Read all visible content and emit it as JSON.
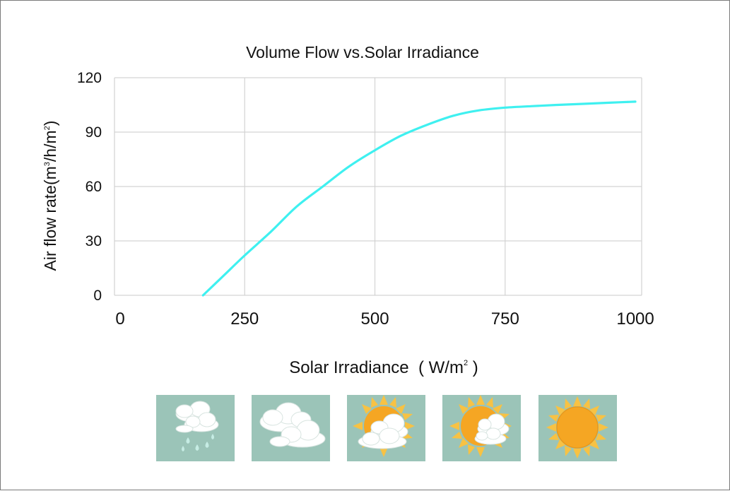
{
  "chart_data": {
    "type": "line",
    "title": "Volume Flow vs.Solar Irradiance",
    "ylabel": {
      "text": "Air flow rate(m",
      "sup1": "3",
      "mid": "/h/m",
      "sup2": "2",
      "end": ")"
    },
    "xlabel": {
      "text": "Solar Irradiance  ( W/m",
      "sup": "2",
      "end": " )"
    },
    "xlim": [
      0,
      1000
    ],
    "ylim": [
      0,
      120
    ],
    "x_ticks": [
      "0",
      "250",
      "500",
      "750",
      "1000"
    ],
    "y_ticks": [
      "0",
      "30",
      "60",
      "90",
      "120"
    ],
    "grid": true,
    "line_color": "#3ff0f0",
    "series": [
      {
        "x": [
          170,
          210,
          250,
          300,
          350,
          400,
          450,
          500,
          550,
          600,
          650,
          700,
          750,
          800,
          850,
          900,
          950,
          1000
        ],
        "y": [
          0,
          11,
          22,
          35,
          49,
          60,
          71,
          80,
          88,
          94,
          99,
          102,
          103.5,
          104.3,
          105,
          105.6,
          106.2,
          106.8
        ]
      }
    ]
  },
  "weather_icons": [
    {
      "name": "rain-cloud-icon",
      "condition": "rain"
    },
    {
      "name": "cloudy-icon",
      "condition": "cloudy"
    },
    {
      "name": "sun-behind-cloud-icon",
      "condition": "mostly cloudy"
    },
    {
      "name": "partly-sunny-icon",
      "condition": "partly sunny"
    },
    {
      "name": "sunny-icon",
      "condition": "sunny"
    }
  ],
  "colors": {
    "tile": "#9bc4b8",
    "sun": "#f5a623",
    "sun_ray": "#f7c244",
    "cloud": "#ffffff",
    "drop": "#c6ece4"
  }
}
